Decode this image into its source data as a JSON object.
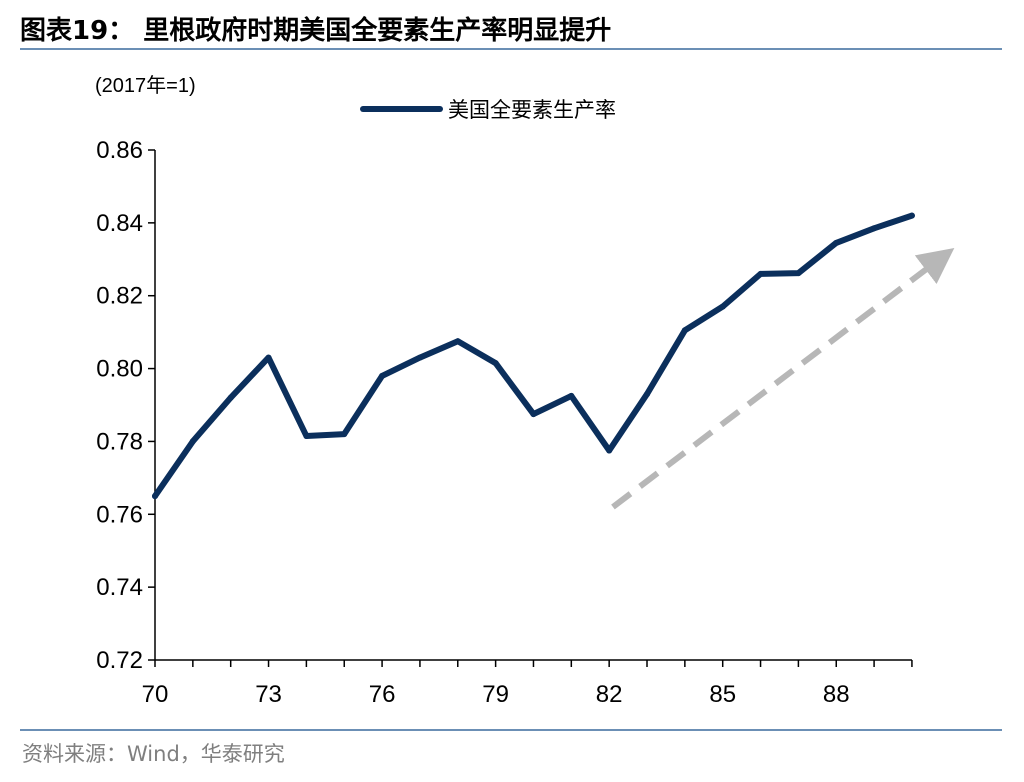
{
  "title": "图表19： 里根政府时期美国全要素生产率明显提升",
  "source": "资料来源：Wind，华泰研究",
  "chart_data": {
    "type": "line",
    "unit_label": "(2017年=1)",
    "x": [
      70,
      71,
      72,
      73,
      74,
      75,
      76,
      77,
      78,
      79,
      80,
      81,
      82,
      83,
      84,
      85,
      86,
      87,
      88,
      89,
      90
    ],
    "xticks": [
      70,
      73,
      76,
      79,
      82,
      85,
      88
    ],
    "xlim": [
      70,
      90.9
    ],
    "yticks": [
      "0.72",
      "0.74",
      "0.76",
      "0.78",
      "0.80",
      "0.82",
      "0.84",
      "0.86"
    ],
    "ylim": [
      0.72,
      0.86
    ],
    "series": [
      {
        "name": "美国全要素生产率",
        "color": "#0b2f5c",
        "values": [
          0.765,
          0.78,
          0.792,
          0.803,
          0.7815,
          0.782,
          0.798,
          0.803,
          0.8075,
          0.8015,
          0.7875,
          0.7925,
          0.7775,
          0.793,
          0.8105,
          0.817,
          0.826,
          0.8262,
          0.8345,
          0.8385,
          0.842
        ]
      }
    ],
    "annotation": {
      "type": "dashed-arrow",
      "color": "#b7b7b7",
      "from": [
        82.1,
        0.762
      ],
      "to": [
        90.9,
        0.8315
      ]
    },
    "legend_position": "top-center",
    "grid": false
  }
}
